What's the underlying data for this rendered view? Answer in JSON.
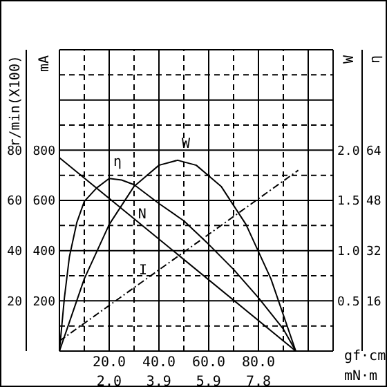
{
  "chart_data": [
    {
      "type": "line",
      "xlabel": "gf·cm",
      "xlim": [
        0,
        110
      ],
      "xticks": [
        {
          "value": 10,
          "label": null
        },
        {
          "value": 20,
          "label": "20.0"
        },
        {
          "value": 30,
          "label": null
        },
        {
          "value": 40,
          "label": "40.0"
        },
        {
          "value": 50,
          "label": null
        },
        {
          "value": 60,
          "label": "60.0"
        },
        {
          "value": 70,
          "label": null
        },
        {
          "value": 80,
          "label": "80.0"
        },
        {
          "value": 90,
          "label": null
        },
        {
          "value": 100,
          "label": null
        }
      ],
      "x2label": "mN·m",
      "x2lim": [
        0,
        10.79
      ],
      "x2ticks": [
        {
          "value": 1.96,
          "label": "2.0"
        },
        {
          "value": 3.92,
          "label": "3.9"
        },
        {
          "value": 5.88,
          "label": "5.9"
        },
        {
          "value": 7.85,
          "label": "7.8"
        }
      ],
      "ylabel": "mA",
      "ylim": [
        0,
        1200
      ],
      "yticks": [
        {
          "value": 100,
          "label": null
        },
        200,
        {
          "value": 300,
          "label": null
        },
        400,
        {
          "value": 500,
          "label": null
        },
        600,
        {
          "value": 700,
          "label": null
        },
        800,
        {
          "value": 900,
          "label": null
        },
        {
          "value": 1000,
          "label": null
        },
        {
          "value": 1100,
          "label": null
        }
      ],
      "y2label": "r/min(X100)",
      "y2lim": [
        0,
        120
      ],
      "y2ticks": [
        20,
        40,
        60,
        80
      ],
      "y3label": "W",
      "y3lim": [
        0,
        3
      ],
      "y3ticks": [
        0.5,
        {
          "value": 1,
          "label": "1.0"
        },
        1.5,
        {
          "value": 2,
          "label": "2.0"
        }
      ],
      "grid": true,
      "marker": "none",
      "series": [
        {
          "name": "N",
          "color": "#000000",
          "axis": "y2",
          "line_style": "solid",
          "x": [
            0,
            95
          ],
          "values": [
            77,
            0
          ]
        },
        {
          "name": "W",
          "color": "#000000",
          "axis": "y3",
          "line_style": "solid",
          "x": [
            0,
            10,
            20,
            30,
            40,
            47.5,
            55,
            65,
            75,
            85,
            95
          ],
          "values": [
            0,
            0.72,
            1.26,
            1.64,
            1.85,
            1.9,
            1.85,
            1.64,
            1.26,
            0.72,
            0
          ]
        },
        {
          "name": "I",
          "color": "#000000",
          "line_style": "dashed",
          "x": [
            0,
            96
          ],
          "values": [
            40,
            720
          ]
        }
      ]
    },
    {
      "type": "line",
      "xlim": [
        0,
        110
      ],
      "tick_labels": "y",
      "ylabel": "η",
      "ylim": [
        0,
        96
      ],
      "yticks": [
        16,
        32,
        48,
        64
      ],
      "series": [
        {
          "name": "η",
          "color": "#000000",
          "line_style": "solid",
          "x": [
            0,
            2,
            4,
            7,
            10,
            15,
            20,
            25,
            30,
            40,
            50,
            60,
            70,
            80,
            90,
            95
          ],
          "values": [
            0,
            17,
            30,
            41,
            47.7,
            52,
            55,
            54.5,
            53,
            47,
            41.5,
            34,
            26,
            17,
            7,
            0
          ]
        }
      ]
    }
  ]
}
